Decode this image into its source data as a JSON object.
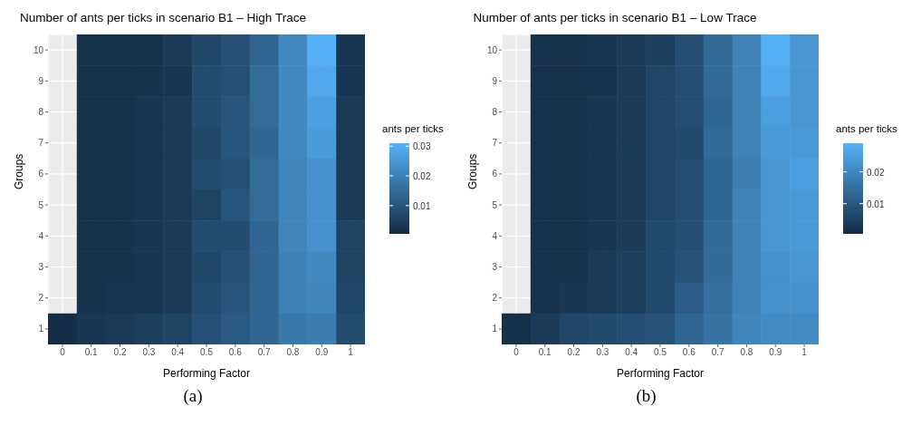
{
  "chart_data": [
    {
      "type": "heatmap",
      "title": "Number of ants per ticks in scenario B1 – High Trace",
      "xlabel": "Performing Factor",
      "ylabel": "Groups",
      "clabel": "ants per ticks",
      "grid": true,
      "categories": [
        "0",
        "0.1",
        "0.2",
        "0.3",
        "0.4",
        "0.5",
        "0.6",
        "0.7",
        "0.8",
        "0.9",
        "1"
      ],
      "y_categories": [
        "10",
        "9",
        "8",
        "7",
        "6",
        "5",
        "4",
        "3",
        "2",
        "1"
      ],
      "cells": [
        [
          null,
          0.002,
          0.002,
          0.002,
          0.004,
          0.007,
          0.009,
          0.014,
          0.022,
          0.031,
          0.003
        ],
        [
          null,
          0.002,
          0.002,
          0.002,
          0.003,
          0.008,
          0.009,
          0.015,
          0.022,
          0.029,
          0.003
        ],
        [
          null,
          0.002,
          0.002,
          0.003,
          0.004,
          0.008,
          0.01,
          0.015,
          0.022,
          0.027,
          0.004
        ],
        [
          null,
          0.002,
          0.002,
          0.003,
          0.004,
          0.007,
          0.01,
          0.014,
          0.022,
          0.026,
          0.004
        ],
        [
          null,
          0.002,
          0.002,
          0.003,
          0.004,
          0.008,
          0.009,
          0.015,
          0.021,
          0.024,
          0.004
        ],
        [
          null,
          0.002,
          0.002,
          0.003,
          0.004,
          0.006,
          0.01,
          0.015,
          0.021,
          0.024,
          0.004
        ],
        [
          null,
          0.002,
          0.002,
          0.003,
          0.004,
          0.008,
          0.008,
          0.014,
          0.021,
          0.024,
          0.006
        ],
        [
          null,
          0.002,
          0.002,
          0.003,
          0.004,
          0.007,
          0.009,
          0.014,
          0.02,
          0.022,
          0.006
        ],
        [
          null,
          0.002,
          0.003,
          0.003,
          0.004,
          0.008,
          0.01,
          0.014,
          0.02,
          0.021,
          0.007
        ],
        [
          0.001,
          0.003,
          0.004,
          0.005,
          0.006,
          0.009,
          0.011,
          0.014,
          0.018,
          0.019,
          0.008
        ]
      ],
      "clim": [
        0.0005,
        0.031
      ],
      "cticks": [
        0.01,
        0.02,
        0.03
      ],
      "annotations": [
        "(a)"
      ]
    },
    {
      "type": "heatmap",
      "title": "Number of ants per ticks in scenario B1 – Low Trace",
      "xlabel": "Performing Factor",
      "ylabel": "Groups",
      "clabel": "ants per ticks",
      "grid": true,
      "categories": [
        "0",
        "0.1",
        "0.2",
        "0.3",
        "0.4",
        "0.5",
        "0.6",
        "0.7",
        "0.8",
        "0.9",
        "1"
      ],
      "y_categories": [
        "10",
        "9",
        "8",
        "7",
        "6",
        "5",
        "4",
        "3",
        "2",
        "1"
      ],
      "cells": [
        [
          null,
          0.002,
          0.002,
          0.003,
          0.004,
          0.005,
          0.008,
          0.014,
          0.019,
          0.029,
          0.023
        ],
        [
          null,
          0.002,
          0.002,
          0.002,
          0.004,
          0.006,
          0.008,
          0.014,
          0.019,
          0.027,
          0.023
        ],
        [
          null,
          0.002,
          0.002,
          0.003,
          0.004,
          0.006,
          0.008,
          0.013,
          0.019,
          0.025,
          0.023
        ],
        [
          null,
          0.002,
          0.002,
          0.003,
          0.004,
          0.006,
          0.007,
          0.014,
          0.019,
          0.024,
          0.024
        ],
        [
          null,
          0.002,
          0.002,
          0.003,
          0.004,
          0.006,
          0.008,
          0.013,
          0.018,
          0.023,
          0.025
        ],
        [
          null,
          0.002,
          0.002,
          0.003,
          0.004,
          0.006,
          0.008,
          0.013,
          0.019,
          0.023,
          0.024
        ],
        [
          null,
          0.002,
          0.002,
          0.003,
          0.004,
          0.007,
          0.008,
          0.014,
          0.019,
          0.023,
          0.024
        ],
        [
          null,
          0.002,
          0.002,
          0.004,
          0.005,
          0.007,
          0.009,
          0.014,
          0.019,
          0.022,
          0.023
        ],
        [
          null,
          0.002,
          0.003,
          0.004,
          0.005,
          0.007,
          0.011,
          0.015,
          0.019,
          0.022,
          0.022
        ],
        [
          0.0015,
          0.004,
          0.006,
          0.007,
          0.008,
          0.009,
          0.013,
          0.016,
          0.02,
          0.021,
          0.021
        ]
      ],
      "clim": [
        0.0005,
        0.029
      ],
      "cticks": [
        0.01,
        0.02
      ],
      "annotations": [
        "(b)"
      ]
    }
  ]
}
